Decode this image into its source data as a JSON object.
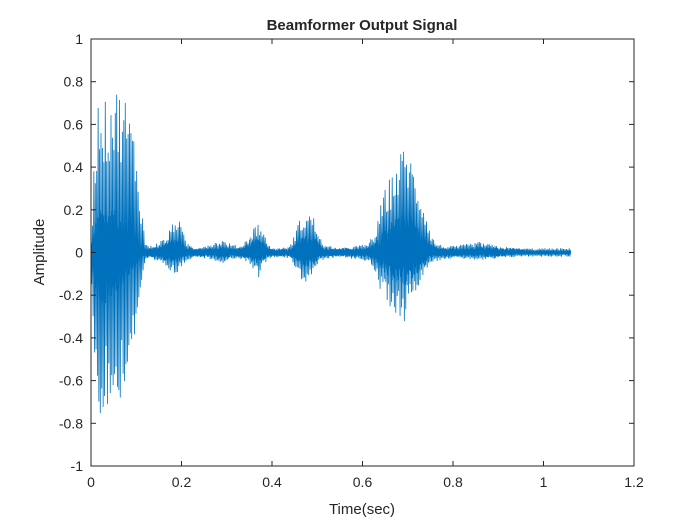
{
  "chart_data": {
    "type": "line",
    "title": "Beamformer Output Signal",
    "xlabel": "Time(sec)",
    "ylabel": "Amplitude",
    "xlim": [
      0,
      1.2
    ],
    "ylim": [
      -1,
      1
    ],
    "x_ticks": [
      "0",
      "0.2",
      "0.4",
      "0.6",
      "0.8",
      "1",
      "1.2"
    ],
    "y_ticks": [
      "1",
      "0.8",
      "0.6",
      "0.4",
      "0.2",
      "0",
      "-0.2",
      "-0.4",
      "-0.6",
      "-0.8",
      "-1"
    ],
    "grid": false,
    "box": true,
    "colors": {
      "series": "#0072BD",
      "axes": "#262626",
      "background": "#ffffff"
    },
    "series": [
      {
        "x": [
          0.0,
          0.01,
          0.02,
          0.03,
          0.04,
          0.05,
          0.06,
          0.07,
          0.08,
          0.09,
          0.1,
          0.11,
          0.12,
          0.13,
          0.15,
          0.17,
          0.18,
          0.19,
          0.2,
          0.21,
          0.23,
          0.26,
          0.29,
          0.31,
          0.33,
          0.35,
          0.36,
          0.37,
          0.38,
          0.39,
          0.4,
          0.42,
          0.44,
          0.46,
          0.47,
          0.48,
          0.49,
          0.5,
          0.51,
          0.52,
          0.53,
          0.55,
          0.58,
          0.61,
          0.63,
          0.64,
          0.65,
          0.66,
          0.67,
          0.68,
          0.69,
          0.7,
          0.71,
          0.72,
          0.73,
          0.74,
          0.75,
          0.76,
          0.77,
          0.78,
          0.8,
          0.83,
          0.86,
          0.9,
          0.94,
          0.98,
          1.02,
          1.06
        ],
        "upper": [
          0.05,
          0.6,
          0.82,
          0.7,
          0.76,
          0.77,
          0.78,
          0.76,
          0.72,
          0.62,
          0.5,
          0.25,
          0.05,
          0.03,
          0.05,
          0.08,
          0.15,
          0.18,
          0.12,
          0.05,
          0.02,
          0.04,
          0.06,
          0.04,
          0.03,
          0.08,
          0.12,
          0.15,
          0.1,
          0.05,
          0.02,
          0.02,
          0.03,
          0.15,
          0.18,
          0.19,
          0.18,
          0.12,
          0.05,
          0.03,
          0.03,
          0.02,
          0.03,
          0.04,
          0.1,
          0.22,
          0.3,
          0.35,
          0.4,
          0.45,
          0.5,
          0.52,
          0.42,
          0.35,
          0.28,
          0.2,
          0.1,
          0.05,
          0.04,
          0.03,
          0.03,
          0.04,
          0.05,
          0.03,
          0.02,
          0.02,
          0.02,
          0.02
        ],
        "lower": [
          -0.05,
          -0.7,
          -0.85,
          -0.72,
          -0.78,
          -0.75,
          -0.72,
          -0.66,
          -0.6,
          -0.5,
          -0.35,
          -0.18,
          -0.05,
          -0.03,
          -0.05,
          -0.08,
          -0.1,
          -0.1,
          -0.08,
          -0.04,
          -0.02,
          -0.03,
          -0.05,
          -0.03,
          -0.03,
          -0.05,
          -0.08,
          -0.12,
          -0.06,
          -0.04,
          -0.02,
          -0.02,
          -0.03,
          -0.1,
          -0.15,
          -0.13,
          -0.1,
          -0.07,
          -0.04,
          -0.03,
          -0.03,
          -0.02,
          -0.03,
          -0.04,
          -0.1,
          -0.2,
          -0.22,
          -0.25,
          -0.28,
          -0.3,
          -0.35,
          -0.25,
          -0.2,
          -0.18,
          -0.12,
          -0.08,
          -0.05,
          -0.04,
          -0.04,
          -0.03,
          -0.03,
          -0.03,
          -0.04,
          -0.03,
          -0.02,
          -0.02,
          -0.02,
          -0.02
        ],
        "dense_upper": [
          0.03,
          0.15,
          0.2,
          0.22,
          0.22,
          0.2,
          0.18,
          0.15,
          0.1,
          0.08,
          0.05,
          0.03,
          0.02,
          0.02,
          0.03,
          0.05,
          0.06,
          0.06,
          0.05,
          0.03,
          0.02,
          0.02,
          0.03,
          0.02,
          0.02,
          0.04,
          0.06,
          0.07,
          0.05,
          0.03,
          0.02,
          0.02,
          0.02,
          0.06,
          0.08,
          0.08,
          0.07,
          0.06,
          0.03,
          0.02,
          0.02,
          0.02,
          0.02,
          0.02,
          0.05,
          0.08,
          0.12,
          0.14,
          0.16,
          0.18,
          0.2,
          0.18,
          0.15,
          0.12,
          0.1,
          0.07,
          0.04,
          0.03,
          0.02,
          0.02,
          0.02,
          0.02,
          0.03,
          0.02,
          0.02,
          0.01,
          0.01,
          0.01
        ],
        "dense_lower": [
          -0.03,
          -0.2,
          -0.25,
          -0.25,
          -0.22,
          -0.2,
          -0.18,
          -0.15,
          -0.12,
          -0.1,
          -0.06,
          -0.03,
          -0.02,
          -0.02,
          -0.03,
          -0.04,
          -0.05,
          -0.05,
          -0.04,
          -0.02,
          -0.02,
          -0.02,
          -0.03,
          -0.02,
          -0.02,
          -0.03,
          -0.05,
          -0.06,
          -0.04,
          -0.02,
          -0.02,
          -0.02,
          -0.02,
          -0.05,
          -0.07,
          -0.07,
          -0.06,
          -0.04,
          -0.02,
          -0.02,
          -0.02,
          -0.02,
          -0.02,
          -0.02,
          -0.04,
          -0.08,
          -0.1,
          -0.12,
          -0.14,
          -0.15,
          -0.17,
          -0.14,
          -0.12,
          -0.1,
          -0.08,
          -0.06,
          -0.03,
          -0.02,
          -0.02,
          -0.02,
          -0.02,
          -0.02,
          -0.02,
          -0.02,
          -0.01,
          -0.01,
          -0.01,
          -0.01
        ]
      }
    ]
  }
}
